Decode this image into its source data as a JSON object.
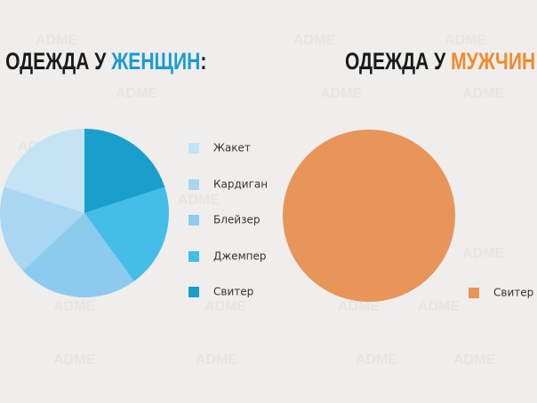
{
  "watermark": "ADME",
  "chart_data": [
    {
      "type": "pie",
      "title_parts": [
        "ОДЕЖДА У ",
        "ЖЕНЩИН",
        ":"
      ],
      "title_color": "#1b9ccf",
      "categories": [
        "Жакет",
        "Кардиган",
        "Блейзер",
        "Джемпер",
        "Свитер"
      ],
      "values": [
        20,
        17,
        23,
        20,
        20
      ],
      "colors": [
        "#c4e3f4",
        "#a9d6f0",
        "#8ccbed",
        "#45bde9",
        "#1a9fcc"
      ]
    },
    {
      "type": "pie",
      "title_parts": [
        "ОДЕЖДА У ",
        "МУЖЧИН",
        ":"
      ],
      "title_color": "#ef8b2c",
      "categories": [
        "Свитер"
      ],
      "values": [
        100
      ],
      "colors": [
        "#e8955a"
      ]
    }
  ]
}
